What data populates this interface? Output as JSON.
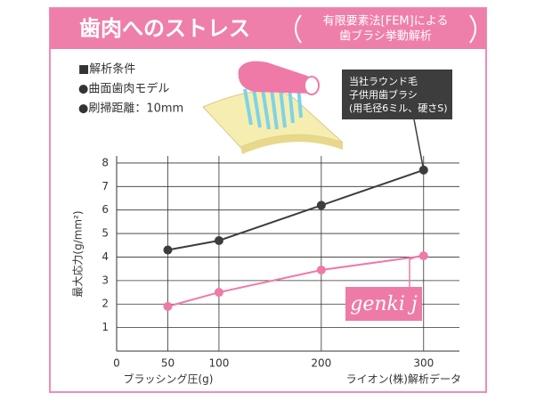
{
  "chart_data": {
    "type": "line",
    "title": "歯肉へのストレス",
    "subtitle": [
      "有限要素法[FEM]による",
      "歯ブラシ挙動解析"
    ],
    "annotations": [
      "■解析条件",
      "●曲面歯肉モデル",
      "●刷掃距離：10mm"
    ],
    "x_label": "ブラッシング圧(g)",
    "y_label": "最大応力(g/mm²)",
    "source": "ライオン(株)解析データ",
    "x": [
      50,
      100,
      200,
      300
    ],
    "series": [
      {
        "name": [
          "当社ラウンド毛",
          "子供用歯ブラシ",
          "(用毛径6ミル、硬さS)"
        ],
        "color": "#3d3d3d",
        "values": [
          4.3,
          4.7,
          6.2,
          7.7
        ]
      },
      {
        "name": "genki j",
        "color": "#ee7aa8",
        "values": [
          1.9,
          2.5,
          3.45,
          4.05
        ]
      }
    ],
    "xlim": [
      0,
      335
    ],
    "ylim": [
      0,
      8.3
    ],
    "xticks": [
      0,
      50,
      100,
      200,
      300
    ],
    "yticks": [
      1,
      2,
      3,
      4,
      5,
      6,
      7,
      8
    ],
    "grid": true
  }
}
